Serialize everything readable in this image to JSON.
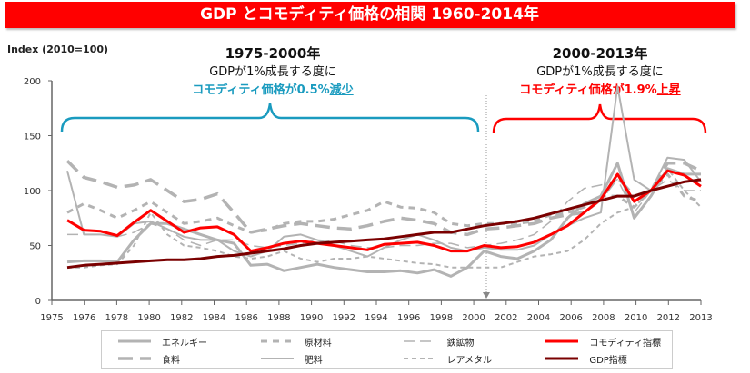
{
  "title": "GDP とコモディティ価格の相関  1960-2014年",
  "y_axis_label": "Index (2010=100)",
  "annotations": {
    "left": {
      "period": "1975-2000年",
      "line1": "GDPが1%成長する度に",
      "line2_main": "コモディティ価格が0.5%",
      "line2_under": "減少",
      "color": "#1a9bbf"
    },
    "right": {
      "period": "2000-2013年",
      "line1": "GDPが1%成長する度に",
      "line2_main": "コモディティ価格が1.9%",
      "line2_under": "上昇",
      "color": "#ff0000"
    }
  },
  "chart_data": {
    "type": "line",
    "title": "GDP とコモディティ価格の相関  1960-2014年",
    "ylabel": "Index (2010=100)",
    "ylim": [
      0,
      200
    ],
    "yticks": [
      0,
      50,
      100,
      150,
      200
    ],
    "xlim": [
      1975,
      2013
    ],
    "xtick_labels": [
      "1975",
      "1976",
      "1978",
      "1980",
      "1982",
      "1984",
      "1986",
      "1988",
      "1990",
      "1992",
      "1994",
      "1996",
      "1998",
      "2000",
      "2002",
      "2004",
      "2006",
      "2008",
      "2010",
      "2012",
      "2013"
    ],
    "x": [
      1975,
      1976,
      1977,
      1978,
      1979,
      1980,
      1981,
      1982,
      1983,
      1984,
      1985,
      1986,
      1987,
      1988,
      1989,
      1990,
      1991,
      1992,
      1993,
      1994,
      1995,
      1996,
      1997,
      1998,
      1999,
      2000,
      2001,
      2002,
      2003,
      2004,
      2005,
      2006,
      2007,
      2008,
      2009,
      2010,
      2011,
      2012,
      2013
    ],
    "grid": false,
    "legend_position": "bottom",
    "series": [
      {
        "name": "エネルギー",
        "color": "#b3b3b3",
        "style": "solid-thick",
        "values": [
          35,
          36,
          36,
          35,
          55,
          70,
          70,
          65,
          60,
          55,
          52,
          32,
          33,
          27,
          30,
          33,
          30,
          28,
          26,
          26,
          27,
          25,
          28,
          22,
          30,
          45,
          40,
          38,
          45,
          55,
          75,
          88,
          95,
          125,
          75,
          95,
          120,
          115,
          115
        ]
      },
      {
        "name": "原材料",
        "color": "#b3b3b3",
        "style": "dash",
        "values": [
          80,
          88,
          82,
          75,
          82,
          90,
          80,
          70,
          72,
          75,
          68,
          62,
          64,
          70,
          72,
          72,
          74,
          78,
          82,
          90,
          85,
          84,
          80,
          70,
          68,
          70,
          70,
          70,
          72,
          78,
          80,
          85,
          95,
          95,
          85,
          100,
          115,
          95,
          90
        ]
      },
      {
        "name": "鉄鉱物",
        "color": "#b3b3b3",
        "style": "long-dash-thin",
        "values": [
          60,
          60,
          60,
          58,
          62,
          70,
          65,
          55,
          50,
          55,
          55,
          50,
          48,
          50,
          52,
          55,
          54,
          50,
          48,
          48,
          50,
          50,
          52,
          52,
          48,
          50,
          52,
          55,
          60,
          72,
          90,
          102,
          105,
          110,
          80,
          100,
          110,
          100,
          100
        ]
      },
      {
        "name": "コモディティ指標",
        "color": "#ff0000",
        "style": "solid-red",
        "values": [
          73,
          64,
          63,
          59,
          71,
          82,
          72,
          62,
          66,
          67,
          60,
          45,
          48,
          52,
          54,
          52,
          50,
          48,
          46,
          51,
          52,
          53,
          50,
          45,
          45,
          50,
          48,
          49,
          53,
          60,
          68,
          80,
          92,
          115,
          90,
          100,
          118,
          114,
          104
        ]
      },
      {
        "name": "食料",
        "color": "#b3b3b3",
        "style": "long-dash-thick",
        "values": [
          127,
          112,
          108,
          103,
          105,
          110,
          100,
          90,
          92,
          97,
          80,
          62,
          65,
          68,
          70,
          68,
          66,
          65,
          68,
          72,
          75,
          73,
          70,
          62,
          60,
          65,
          66,
          68,
          70,
          75,
          78,
          80,
          92,
          112,
          95,
          100,
          125,
          125,
          118
        ]
      },
      {
        "name": "肥料",
        "color": "#b3b3b3",
        "style": "solid-thin",
        "values": [
          118,
          60,
          60,
          58,
          70,
          72,
          65,
          58,
          55,
          55,
          45,
          40,
          45,
          58,
          60,
          55,
          50,
          45,
          40,
          48,
          55,
          60,
          55,
          48,
          45,
          48,
          46,
          46,
          50,
          60,
          68,
          75,
          80,
          195,
          110,
          100,
          130,
          128,
          108
        ]
      },
      {
        "name": "レアメタル",
        "color": "#b3b3b3",
        "style": "short-dash",
        "values": [
          30,
          30,
          32,
          33,
          50,
          80,
          60,
          50,
          48,
          45,
          40,
          38,
          40,
          45,
          38,
          35,
          38,
          38,
          40,
          38,
          36,
          34,
          33,
          30,
          30,
          30,
          30,
          35,
          40,
          42,
          45,
          55,
          70,
          80,
          85,
          100,
          120,
          100,
          85
        ]
      },
      {
        "name": "GDP指標",
        "color": "#7a0000",
        "style": "solid-dark",
        "values": [
          30,
          32,
          33,
          34,
          35,
          36,
          37,
          37,
          38,
          40,
          41,
          43,
          45,
          47,
          50,
          52,
          53,
          54,
          55,
          56,
          58,
          60,
          62,
          62,
          65,
          68,
          70,
          72,
          75,
          79,
          83,
          87,
          91,
          95,
          95,
          100,
          104,
          108,
          110
        ]
      }
    ]
  }
}
